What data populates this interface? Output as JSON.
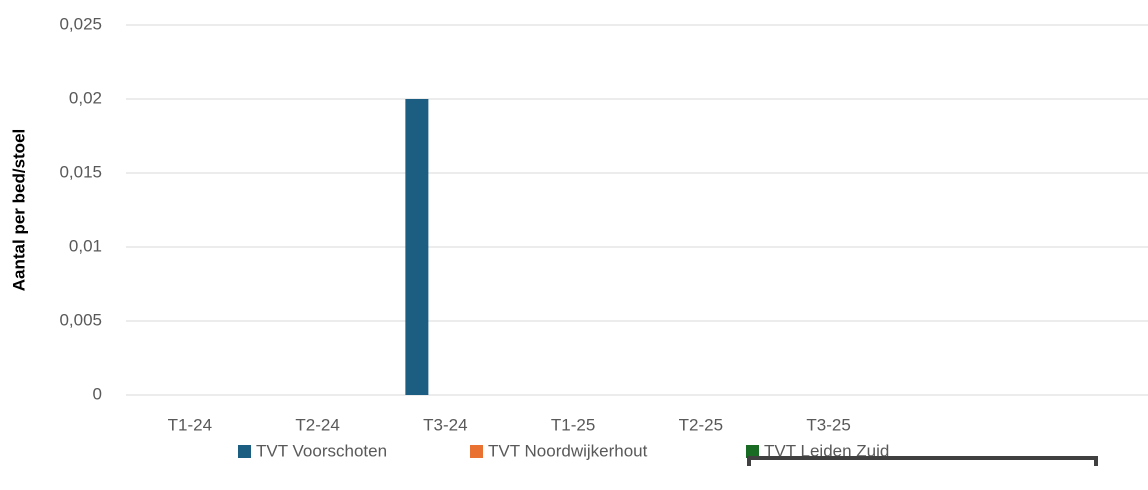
{
  "chart_data": {
    "type": "bar",
    "y_label": "Aantal per bed/stoel",
    "categories": [
      "T1-24",
      "T2-24",
      "T3-24",
      "T1-25",
      "T2-25",
      "T3-25",
      null,
      null
    ],
    "series": [
      {
        "name": "TVT Voorschoten",
        "color": "#1b5e82",
        "values": [
          0,
          0,
          0.02,
          0,
          0,
          0,
          null,
          null
        ]
      },
      {
        "name": "TVT Noordwijkerhout",
        "color": "#e97132",
        "values": [
          0,
          0,
          0,
          0,
          0,
          0,
          null,
          null
        ]
      },
      {
        "name": "TVT Leiden Zuid",
        "color": "#196b24",
        "values": [
          0,
          0,
          0,
          0,
          0,
          0,
          null,
          null
        ]
      }
    ],
    "ylim": [
      0,
      0.025
    ],
    "yticks": [
      0,
      {
        "value": 0.005,
        "label": "0,005"
      },
      {
        "value": 0.01,
        "label": "0,01"
      },
      {
        "value": 0.015,
        "label": "0,015"
      },
      {
        "value": 0.02,
        "label": "0,02"
      },
      {
        "value": 0.025,
        "label": "0,025"
      }
    ],
    "grid": true
  }
}
